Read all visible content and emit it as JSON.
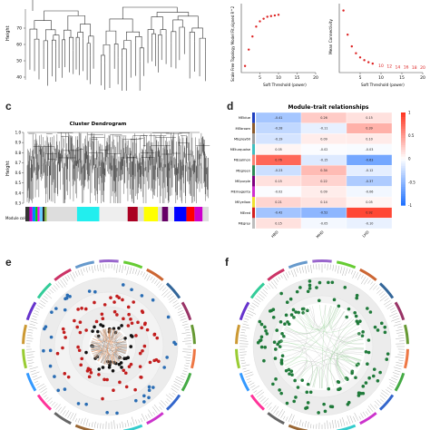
{
  "panels": {
    "a": {
      "label": "",
      "ylabel": "Height",
      "yticks": [
        "40",
        "50",
        "60",
        "70"
      ]
    },
    "b1": {
      "ylabel": "Scale Free Topology Model Fit,signed R^2",
      "xlabel": "Soft Threshold (power)",
      "xticks": [
        "5",
        "10",
        "15",
        "20"
      ]
    },
    "b2": {
      "ylabel": "Mean Connectivity",
      "xlabel": "Soft Threshold (power)",
      "xticks": [
        "5",
        "10",
        "15",
        "20"
      ],
      "point_labels": [
        "10",
        "12",
        "14",
        "16",
        "18",
        "20"
      ]
    },
    "c": {
      "label": "c",
      "title": "Cluster Dendrogram",
      "ylabel": "Height",
      "yticks": [
        "0.3",
        "0.4",
        "0.5",
        "0.6",
        "0.7",
        "0.8",
        "0.9",
        "1.0"
      ],
      "module_label": "Module colors"
    },
    "d": {
      "label": "d",
      "title": "Module–trait relationships",
      "legend_ticks": [
        "1",
        "0.5",
        "0",
        "-0.5",
        "-1"
      ]
    },
    "e": {
      "label": "e"
    },
    "f": {
      "label": "f"
    }
  },
  "chart_data": [
    {
      "type": "scatter",
      "title": "",
      "xlabel": "Soft Threshold (power)",
      "ylabel": "Scale Free Topology Model Fit,signed R^2",
      "x": [
        1,
        2,
        3,
        4,
        5,
        6,
        7,
        8,
        9,
        10
      ],
      "y": [
        0.1,
        0.35,
        0.55,
        0.7,
        0.78,
        0.82,
        0.85,
        0.86,
        0.87,
        0.88
      ],
      "xlim": [
        0,
        20
      ]
    },
    {
      "type": "scatter",
      "title": "",
      "xlabel": "Soft Threshold (power)",
      "ylabel": "Mean Connectivity",
      "x": [
        1,
        2,
        3,
        4,
        5,
        6,
        7,
        8,
        10,
        12,
        14,
        16,
        18,
        20
      ],
      "y": [
        0.9,
        0.55,
        0.38,
        0.28,
        0.22,
        0.18,
        0.15,
        0.13,
        0.1,
        0.09,
        0.08,
        0.08,
        0.07,
        0.07
      ],
      "xlim": [
        0,
        20
      ]
    },
    {
      "type": "heatmap",
      "title": "Module–trait relationships",
      "rows": [
        "MEblue",
        "MEbrown",
        "MEgrey60",
        "MEturquoise",
        "MEsalmon",
        "MEgreen",
        "MEpurple",
        "MEmagenta",
        "MEyellow",
        "MEred",
        "MEgrey"
      ],
      "row_colors": [
        "#1f3fbf",
        "#8b5a2b",
        "#9e9e9e",
        "#40c0c0",
        "#fa8072",
        "#2e8b57",
        "#800080",
        "#d030d0",
        "#f0e030",
        "#d42020",
        "#bdbdbd"
      ],
      "columns": [
        "HBD",
        "MHD",
        "LHD"
      ],
      "values": [
        [
          -0.41,
          0.26,
          0.15
        ],
        [
          -0.28,
          -0.11,
          0.39
        ],
        [
          -0.19,
          0.09,
          0.1
        ],
        [
          0.05,
          -0.02,
          -0.03
        ],
        [
          0.76,
          -0.15,
          -0.63
        ],
        [
          -0.23,
          0.34,
          -0.12
        ],
        [
          0.15,
          0.22,
          -0.37
        ],
        [
          -0.02,
          0.09,
          -0.06
        ],
        [
          0.21,
          0.14,
          0.05
        ],
        [
          -0.42,
          -0.52,
          0.92
        ],
        [
          0.15,
          -0.05,
          -0.1
        ]
      ],
      "legend_range": [
        -1,
        1
      ]
    }
  ]
}
